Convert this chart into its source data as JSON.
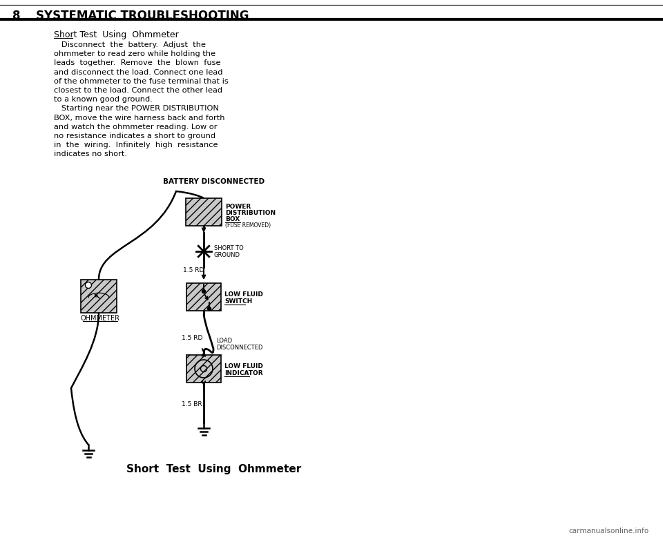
{
  "page_number": "8",
  "header_title": "SYSTEMATIC TROUBLESHOOTING",
  "section_title": "Short Test  Using  Ohmmeter",
  "body_text": [
    "   Disconnect  the  battery.  Adjust  the",
    "ohmmeter to read zero while holding the",
    "leads  together.  Remove  the  blown  fuse",
    "and disconnect the load. Connect one lead",
    "of the ohmmeter to the fuse terminal that is",
    "closest to the load. Connect the other lead",
    "to a known good ground.",
    "   Starting near the POWER DISTRIBUTION",
    "BOX, move the wire harness back and forth",
    "and watch the ohmmeter reading. Low or",
    "no resistance indicates a short to ground",
    "in  the  wiring.  Infinitely  high  resistance",
    "indicates no short."
  ],
  "diagram_title": "BATTERY DISCONNECTED",
  "diagram_caption": "Short  Test  Using  Ohmmeter",
  "watermark": "carmanualsonline.info",
  "bg_color": "#ffffff",
  "text_color": "#000000",
  "diagram": {
    "power_box_label_bold": [
      "POWER",
      "DISTRIBUTION",
      "BOX"
    ],
    "power_box_label_small": "(FUSE REMOVED)",
    "short_label": [
      "SHORT TO",
      "GROUND"
    ],
    "wire_label_1": "1.5 RD",
    "ohmmeter_label": "OHMMETER",
    "low_fluid_switch_label": [
      "LOW FLUID",
      "SWITCH"
    ],
    "wire_label_2": "1.5 RD",
    "load_label": [
      "LOAD",
      "DISCONNECTED"
    ],
    "low_fluid_indicator_label": [
      "LOW FLUID",
      "INDICATOR"
    ],
    "wire_label_3": "1.5 BR"
  }
}
